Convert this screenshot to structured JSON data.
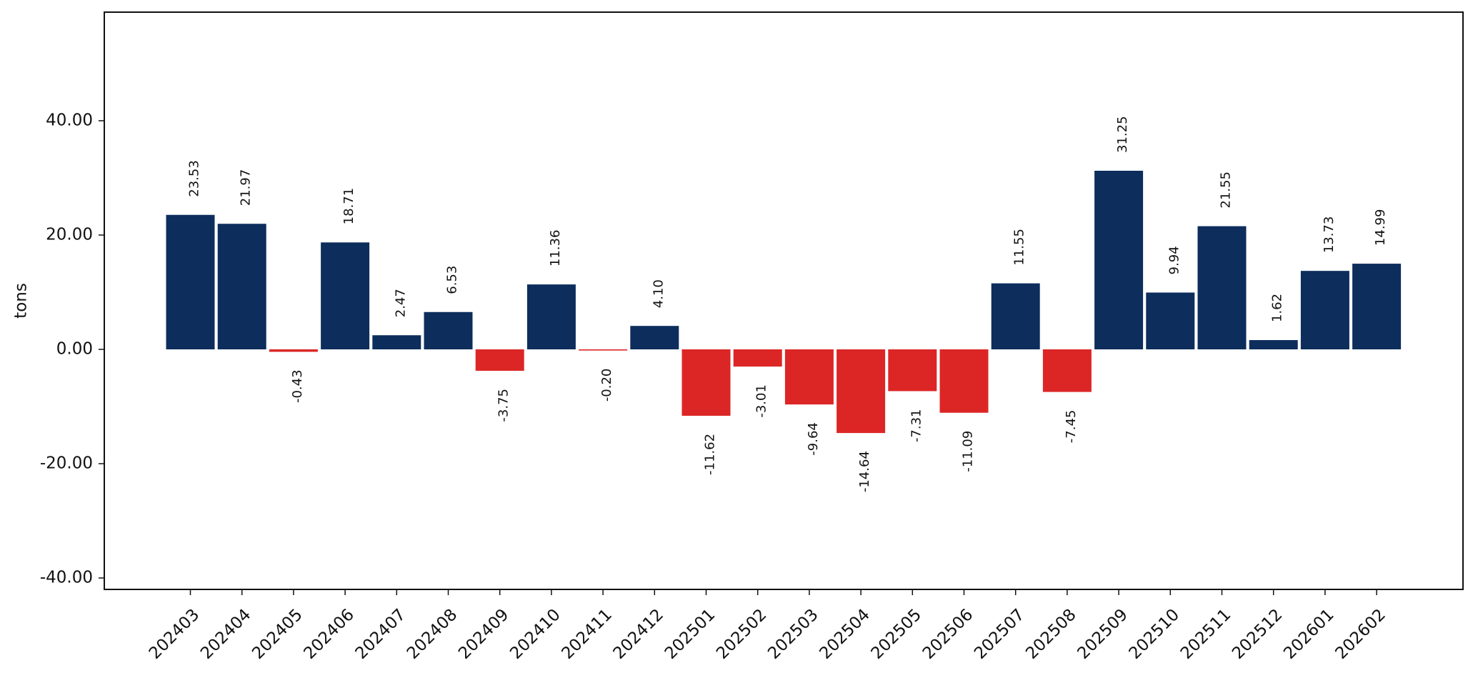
{
  "chart_data": {
    "type": "bar",
    "title": "",
    "xlabel": "",
    "ylabel": "tons",
    "ylim": [
      -42,
      59
    ],
    "yticks": [
      -40,
      -20,
      0,
      20,
      40
    ],
    "ytick_labels": [
      "-40.00",
      "-20.00",
      "0.00",
      "20.00",
      "40.00"
    ],
    "grid": false,
    "legend": "none",
    "colors": {
      "positive": "#0d2d5c",
      "negative": "#dc2626",
      "axis": "#111111"
    },
    "categories": [
      "202403",
      "202404",
      "202405",
      "202406",
      "202407",
      "202408",
      "202409",
      "202410",
      "202411",
      "202412",
      "202501",
      "202502",
      "202503",
      "202504",
      "202505",
      "202506",
      "202507",
      "202508",
      "202509",
      "202510",
      "202511",
      "202512",
      "202601",
      "202602"
    ],
    "values": [
      23.53,
      21.97,
      -0.43,
      18.71,
      2.47,
      6.53,
      -3.75,
      11.36,
      -0.2,
      4.1,
      -11.62,
      -3.01,
      -9.64,
      -14.64,
      -7.31,
      -11.09,
      11.55,
      -7.45,
      31.25,
      9.94,
      21.55,
      1.62,
      13.73,
      14.99
    ],
    "data_labels": [
      "23.53",
      "21.97",
      "-0.43",
      "18.71",
      "2.47",
      "6.53",
      "-3.75",
      "11.36",
      "-0.20",
      "4.10",
      "-11.62",
      "-3.01",
      "-9.64",
      "-14.64",
      "-7.31",
      "-11.09",
      "11.55",
      "-7.45",
      "31.25",
      "9.94",
      "21.55",
      "1.62",
      "13.73",
      "14.99"
    ]
  }
}
